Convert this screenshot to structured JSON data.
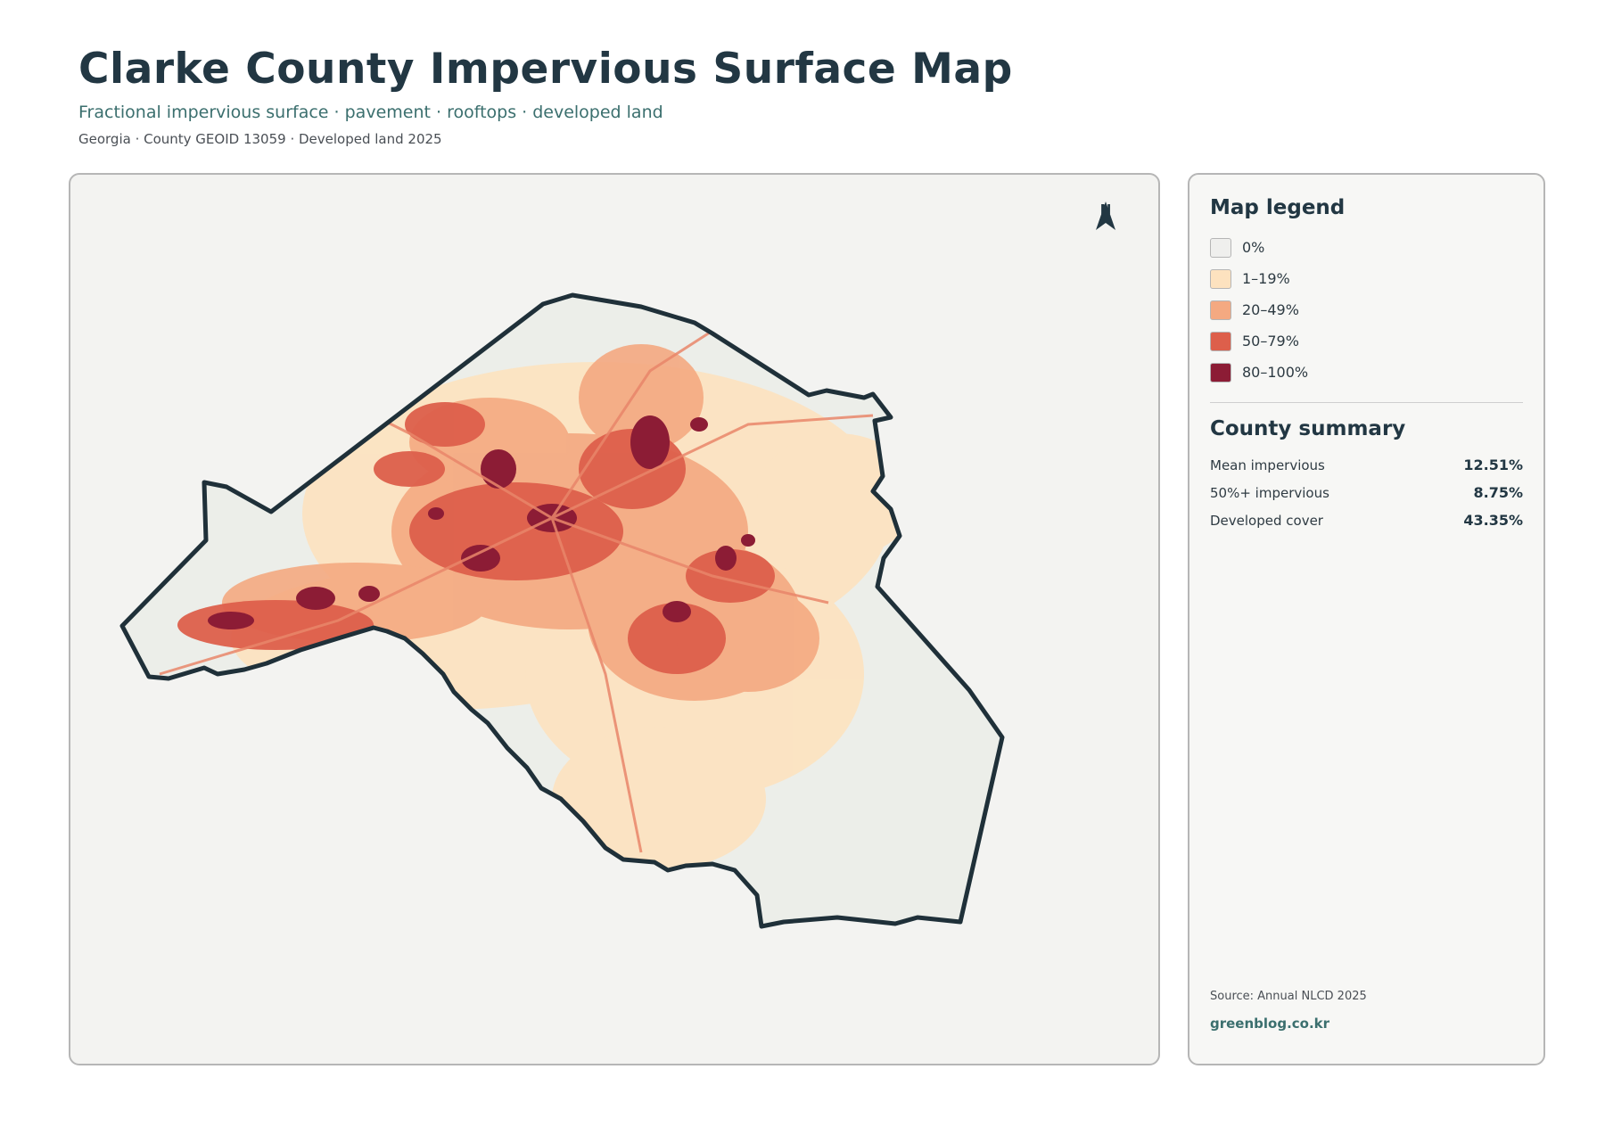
{
  "header": {
    "title": "Clarke County Impervious Surface Map",
    "subtitle": "Fractional impervious surface · pavement · rooftops · developed land",
    "meta": "Georgia · County GEOID 13059 · Developed land 2025"
  },
  "map": {
    "north_label": "N",
    "boundary_color": "#1f3039",
    "base_fill": "#eceee9"
  },
  "legend": {
    "title": "Map legend",
    "items": [
      {
        "label": "0%",
        "color": "#efefed"
      },
      {
        "label": "1–19%",
        "color": "#fde2bf"
      },
      {
        "label": "20–49%",
        "color": "#f4a981"
      },
      {
        "label": "50–79%",
        "color": "#dd5f4b"
      },
      {
        "label": "80–100%",
        "color": "#8c1c35"
      }
    ]
  },
  "summary": {
    "title": "County summary",
    "stats": [
      {
        "label": "Mean impervious",
        "value": "12.51%"
      },
      {
        "label": "50%+ impervious",
        "value": "8.75%"
      },
      {
        "label": "Developed cover",
        "value": "43.35%"
      }
    ]
  },
  "footer": {
    "source": "Source: Annual NLCD 2025",
    "credit": "greenblog.co.kr"
  }
}
